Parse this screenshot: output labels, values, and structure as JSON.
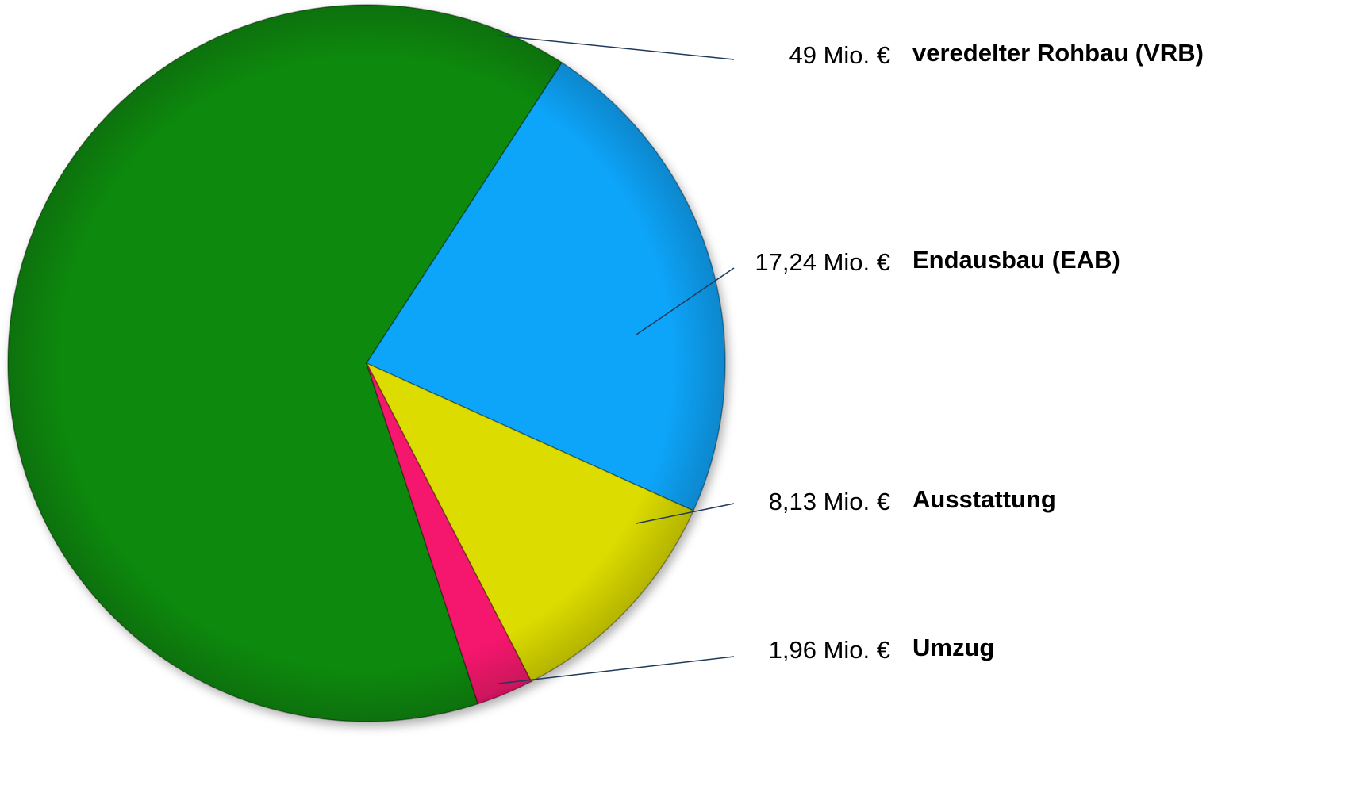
{
  "chart_data": {
    "type": "pie",
    "categories": [
      "veredelter Rohbau (VRB)",
      "Endausbau (EAB)",
      "Ausstattung",
      "Umzug"
    ],
    "values": [
      49,
      17.24,
      8.13,
      1.96
    ],
    "value_labels": [
      "49 Mio. €",
      "17,24 Mio. €",
      "8,13 Mio. €",
      "1,96 Mio. €"
    ],
    "colors": [
      "#0a8a0a",
      "#0aa5fa",
      "#dcdc05",
      "#f5156e"
    ]
  }
}
